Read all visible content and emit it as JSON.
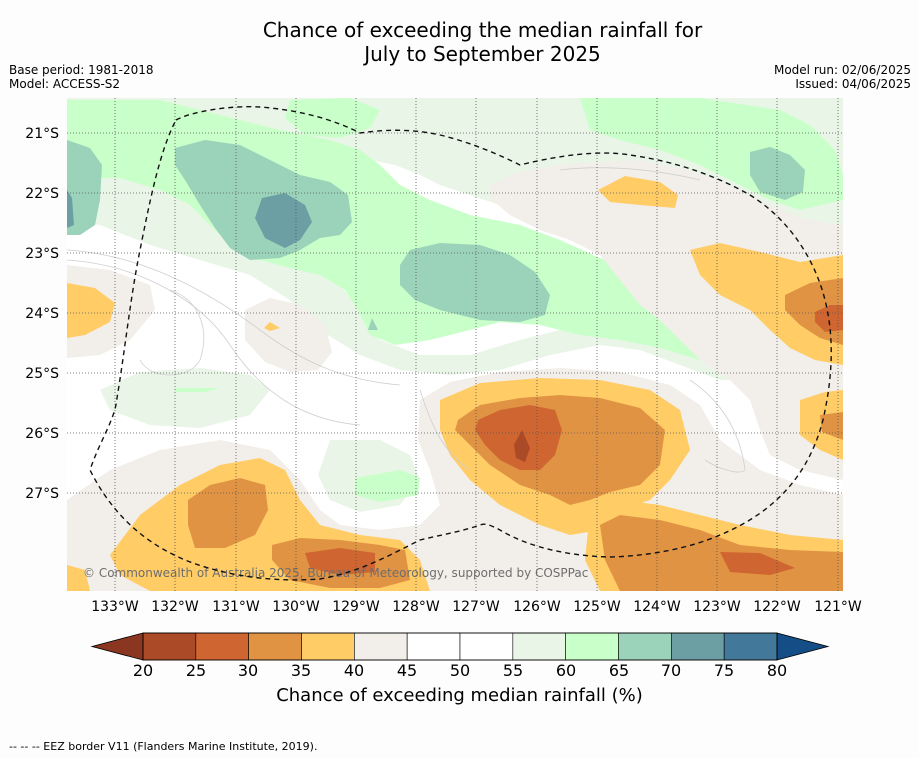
{
  "title": {
    "line1": "Chance of exceeding the median rainfall for",
    "line2": "July to September 2025"
  },
  "meta_left": {
    "base_period": "Base period: 1981-2018",
    "model": "Model: ACCESS-S2"
  },
  "meta_right": {
    "model_run": "Model run: 02/06/2025",
    "issued": "Issued: 04/06/2025"
  },
  "map": {
    "copyright": "© Commonwealth of Australia 2025, Bureau of Meteorology, supported by COSPPac",
    "lat_labels": [
      "21°S",
      "22°S",
      "23°S",
      "24°S",
      "25°S",
      "26°S",
      "27°S"
    ],
    "lon_labels": [
      "133°W",
      "132°W",
      "131°W",
      "130°W",
      "129°W",
      "128°W",
      "127°W",
      "126°W",
      "125°W",
      "124°W",
      "123°W",
      "122°W",
      "121°W"
    ]
  },
  "colorbar": {
    "title": "Chance of exceeding median rainfall (%)",
    "ticks": [
      "20",
      "25",
      "30",
      "35",
      "40",
      "45",
      "50",
      "55",
      "60",
      "65",
      "70",
      "75",
      "80"
    ],
    "colors": [
      "#ab4a27",
      "#cf6530",
      "#e09443",
      "#ffcc66",
      "#f2eee9",
      "#ffffff",
      "#ffffff",
      "#e9f5e7",
      "#c9ffc9",
      "#9bd2ba",
      "#6b9fa3",
      "#42799a"
    ],
    "under_color": "#8a3620",
    "over_color": "#154e86"
  },
  "footer": "--  --  -- EEZ border V11 (Flanders Marine Institute, 2019)."
}
